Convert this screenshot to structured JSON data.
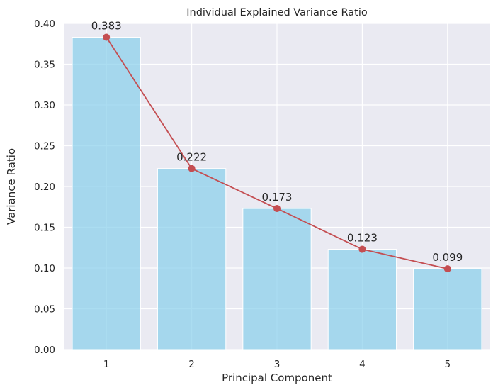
{
  "chart_data": {
    "type": "bar",
    "title": "Individual Explained Variance Ratio",
    "xlabel": "Principal Component",
    "ylabel": "Variance Ratio",
    "categories": [
      "1",
      "2",
      "3",
      "4",
      "5"
    ],
    "values": [
      0.383,
      0.222,
      0.173,
      0.123,
      0.099
    ],
    "data_labels": [
      "0.383",
      "0.222",
      "0.173",
      "0.123",
      "0.099"
    ],
    "overlay_line": {
      "type": "line",
      "marker": "circle",
      "values": [
        0.383,
        0.222,
        0.173,
        0.123,
        0.099
      ]
    },
    "ylim": [
      0,
      0.4
    ],
    "yticks": [
      "0.00",
      "0.05",
      "0.10",
      "0.15",
      "0.20",
      "0.25",
      "0.30",
      "0.35",
      "0.40"
    ],
    "ytick_values": [
      0,
      0.05,
      0.1,
      0.15,
      0.2,
      0.25,
      0.3,
      0.35,
      0.4
    ],
    "grid": true,
    "legend": "none",
    "colors": {
      "bar": "#87ceeb",
      "line": "#c44e52",
      "plot_background": "#eaeaf2",
      "grid": "#ffffff"
    }
  }
}
